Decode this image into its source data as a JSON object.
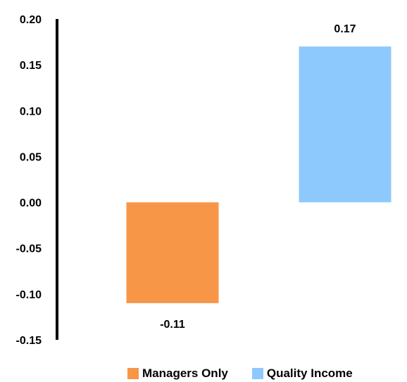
{
  "chart_data": {
    "type": "bar",
    "categories": [
      "Managers Only",
      "Quality Income"
    ],
    "values": [
      -0.11,
      0.17
    ],
    "data_labels": [
      "-0.11",
      "0.17"
    ],
    "colors": [
      "#F79646",
      "#8EC9FD"
    ],
    "title": "",
    "xlabel": "",
    "ylabel": "",
    "ylim": [
      -0.15,
      0.2
    ],
    "yticks": [
      0.2,
      0.15,
      0.1,
      0.05,
      0.0,
      -0.05,
      -0.1,
      -0.15
    ],
    "ytick_labels": [
      "0.20",
      "0.15",
      "0.10",
      "0.05",
      "0.00",
      "-0.05",
      "-0.10",
      "-0.15"
    ],
    "grid": false,
    "legend": {
      "position": "bottom",
      "entries": [
        "Managers Only",
        "Quality Income"
      ]
    }
  }
}
